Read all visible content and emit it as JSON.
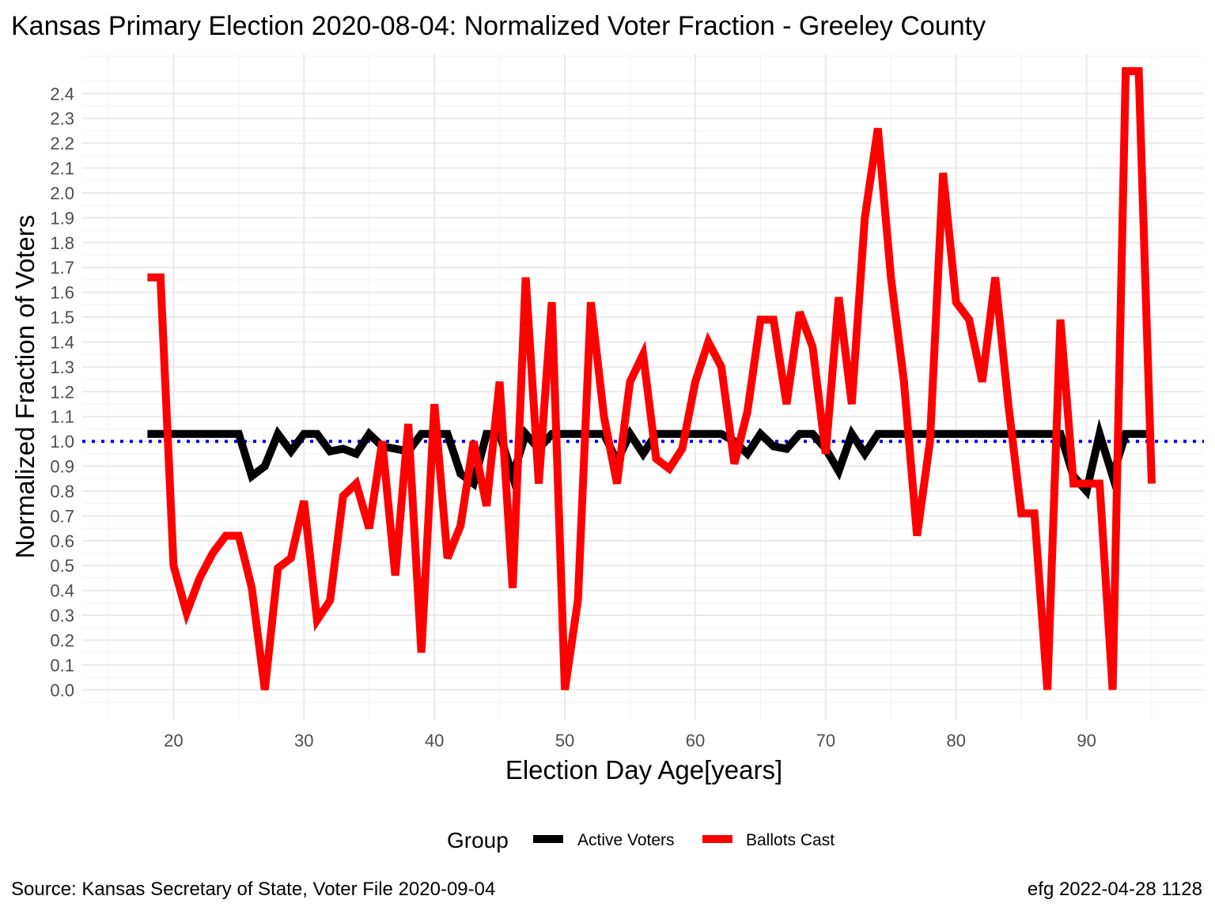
{
  "chart_data": {
    "type": "line",
    "title": "Kansas Primary Election 2020-08-04:  Normalized Voter Fraction - Greeley County",
    "xlabel": "Election Day Age[years]",
    "ylabel": "Normalized Fraction of Voters",
    "xlim": [
      13,
      99
    ],
    "ylim": [
      -0.12,
      2.56
    ],
    "x_ticks": [
      20,
      30,
      40,
      50,
      60,
      70,
      80,
      90
    ],
    "y_ticks": [
      0.0,
      0.1,
      0.2,
      0.3,
      0.4,
      0.5,
      0.6,
      0.7,
      0.8,
      0.9,
      1.0,
      1.1,
      1.2,
      1.3,
      1.4,
      1.5,
      1.6,
      1.7,
      1.8,
      1.9,
      2.0,
      2.1,
      2.2,
      2.3,
      2.4
    ],
    "grid": true,
    "reference_line": {
      "y": 1.0,
      "color": "#0000ff",
      "style": "dotted"
    },
    "legend": {
      "title": "Group",
      "position": "bottom"
    },
    "x": [
      18,
      19,
      20,
      21,
      22,
      23,
      24,
      25,
      26,
      27,
      28,
      29,
      30,
      31,
      32,
      33,
      34,
      35,
      36,
      37,
      38,
      39,
      40,
      41,
      42,
      43,
      44,
      45,
      46,
      47,
      48,
      49,
      50,
      51,
      52,
      53,
      54,
      55,
      56,
      57,
      58,
      59,
      60,
      61,
      62,
      63,
      64,
      65,
      66,
      67,
      68,
      69,
      70,
      71,
      72,
      73,
      74,
      75,
      76,
      77,
      78,
      79,
      80,
      81,
      82,
      83,
      84,
      85,
      86,
      87,
      88,
      89,
      90,
      91,
      92,
      93,
      94,
      95
    ],
    "series": [
      {
        "name": "Active Voters",
        "color": "#000000",
        "values": [
          1.03,
          1.03,
          1.03,
          1.03,
          1.03,
          1.03,
          1.03,
          1.03,
          0.86,
          0.9,
          1.03,
          0.96,
          1.03,
          1.03,
          0.96,
          0.97,
          0.95,
          1.03,
          0.98,
          0.97,
          0.96,
          1.03,
          1.03,
          1.03,
          0.87,
          0.83,
          1.03,
          1.03,
          0.86,
          1.03,
          0.97,
          1.03,
          1.03,
          1.03,
          1.03,
          1.03,
          0.92,
          1.03,
          0.95,
          1.03,
          1.03,
          1.03,
          1.03,
          1.03,
          1.03,
          1.0,
          0.95,
          1.03,
          0.98,
          0.97,
          1.03,
          1.03,
          0.97,
          0.88,
          1.03,
          0.95,
          1.03,
          1.03,
          1.03,
          1.03,
          1.03,
          1.03,
          1.03,
          1.03,
          1.03,
          1.03,
          1.03,
          1.03,
          1.03,
          1.03,
          1.03,
          0.86,
          0.8,
          1.03,
          0.86,
          1.03,
          1.03,
          1.03
        ]
      },
      {
        "name": "Ballots Cast",
        "color": "#ff0000",
        "values": [
          1.66,
          1.66,
          0.5,
          0.31,
          0.45,
          0.55,
          0.62,
          0.62,
          0.41,
          0.0,
          0.49,
          0.53,
          0.76,
          0.28,
          0.36,
          0.78,
          0.83,
          0.65,
          1.0,
          0.46,
          1.07,
          0.15,
          1.15,
          0.53,
          0.66,
          1.0,
          0.74,
          1.24,
          0.41,
          1.66,
          0.83,
          1.56,
          0.0,
          0.36,
          1.56,
          1.1,
          0.83,
          1.24,
          1.35,
          0.93,
          0.89,
          0.97,
          1.24,
          1.4,
          1.3,
          0.91,
          1.12,
          1.49,
          1.49,
          1.15,
          1.52,
          1.38,
          0.95,
          1.58,
          1.15,
          1.9,
          2.26,
          1.66,
          1.24,
          0.62,
          1.0,
          2.08,
          1.56,
          1.49,
          1.24,
          1.66,
          1.15,
          0.71,
          0.71,
          0.0,
          1.49,
          0.83,
          0.83,
          0.83,
          0.0,
          2.49,
          2.49,
          0.83
        ]
      }
    ]
  },
  "caption": {
    "source": "Source:  Kansas Secretary of State, Voter File  2020-09-04",
    "credit": "efg 2022-04-28 1128"
  }
}
